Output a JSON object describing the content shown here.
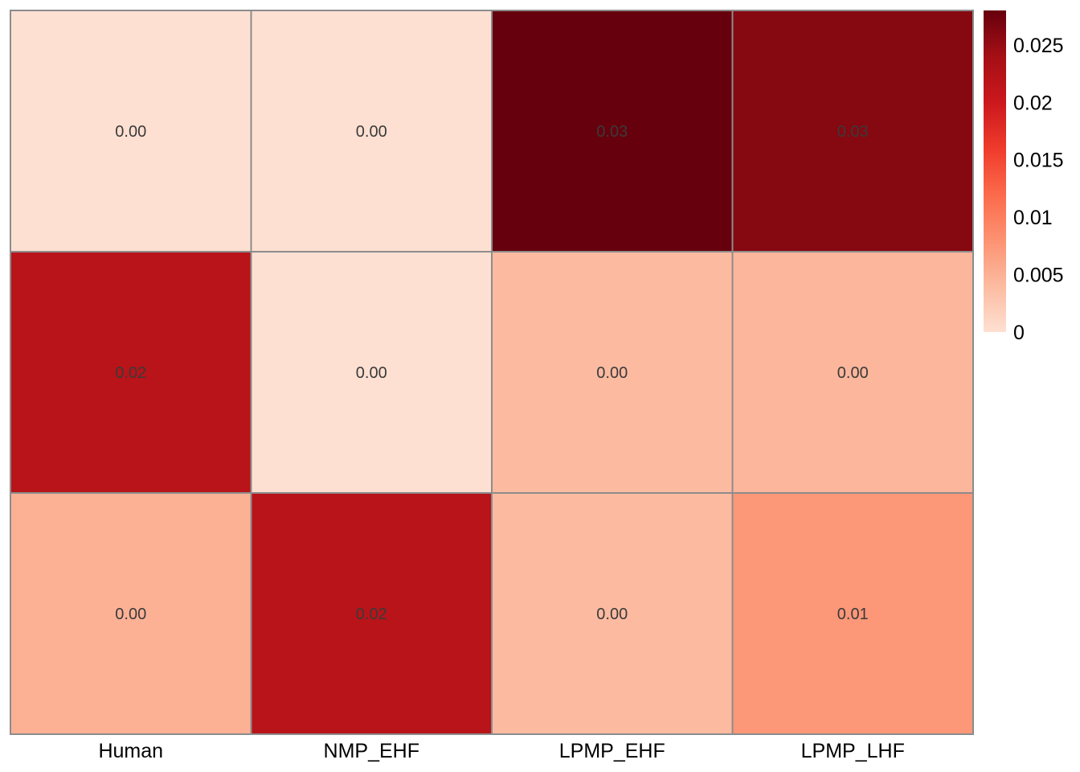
{
  "chart_data": {
    "type": "heatmap",
    "title": "",
    "xlabel": "",
    "ylabel": "",
    "columns": [
      "Human",
      "NMP_EHF",
      "LPMP_EHF",
      "LPMP_LHF"
    ],
    "rows": [
      "",
      "",
      ""
    ],
    "values": [
      [
        0.0,
        0.0,
        0.028,
        0.026
      ],
      [
        0.022,
        0.0,
        0.004,
        0.0045
      ],
      [
        0.005,
        0.022,
        0.004,
        0.0075
      ]
    ],
    "cell_labels": [
      [
        "0.00",
        "0.00",
        "0.03",
        "0.03"
      ],
      [
        "0.02",
        "0.00",
        "0.00",
        "0.00"
      ],
      [
        "0.00",
        "0.02",
        "0.00",
        "0.01"
      ]
    ],
    "colorbar": {
      "min": 0,
      "max": 0.028,
      "ticks": [
        0,
        0.005,
        0.01,
        0.015,
        0.02,
        0.025
      ],
      "tick_labels": [
        "0",
        "0.005",
        "0.01",
        "0.015",
        "0.02",
        "0.025"
      ],
      "colors": [
        "#fee0d2",
        "#fcbba1",
        "#fc9272",
        "#fb6a4a",
        "#ef3b2c",
        "#cb181d",
        "#a50f15",
        "#67000d"
      ],
      "placement": "right"
    },
    "grid_color": "#8c8c8c"
  }
}
